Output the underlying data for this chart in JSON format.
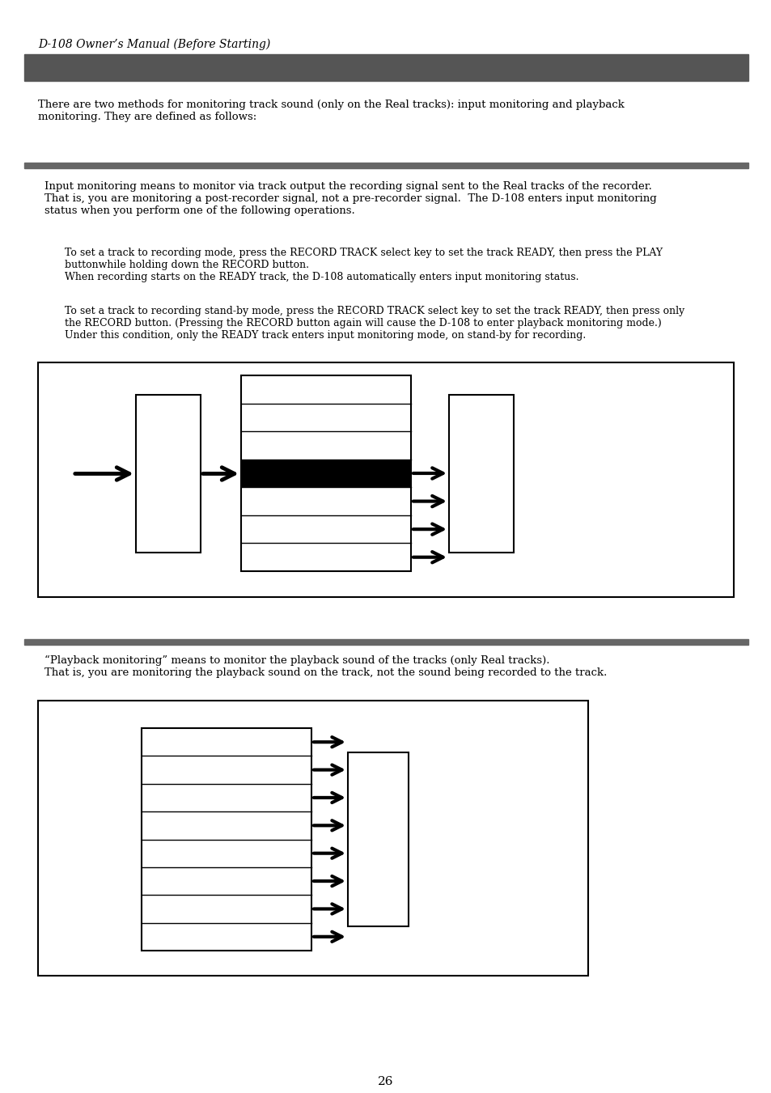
{
  "page_title": "D-108 Owner’s Manual (Before Starting)",
  "page_number": "26",
  "header_bar_color": "#555555",
  "section_bar_color": "#666666",
  "background_color": "#ffffff",
  "text_color": "#000000",
  "intro_text": "There are two methods for monitoring track sound (only on the Real tracks): input monitoring and playback\nmonitoring. They are defined as follows:",
  "input_para1": "Input monitoring means to monitor via track output the recording signal sent to the Real tracks of the recorder.\nThat is, you are monitoring a post-recorder signal, not a pre-recorder signal.  The D-108 enters input monitoring\nstatus when you perform one of the following operations.",
  "input_para2": "To set a track to recording mode, press the RECORD TRACK select key to set the track READY, then press the PLAY\nbuttonwhile holding down the RECORD button.\nWhen recording starts on the READY track, the D-108 automatically enters input monitoring status.",
  "input_para3": "To set a track to recording stand-by mode, press the RECORD TRACK select key to set the track READY, then press only\nthe RECORD button. (Pressing the RECORD button again will cause the D-108 to enter playback monitoring mode.)\nUnder this condition, only the READY track enters input monitoring mode, on stand-by for recording.",
  "playback_para1": "“Playback monitoring” means to monitor the playback sound of the tracks (only Real tracks).\nThat is, you are monitoring the playback sound on the track, not the sound being recorded to the track."
}
